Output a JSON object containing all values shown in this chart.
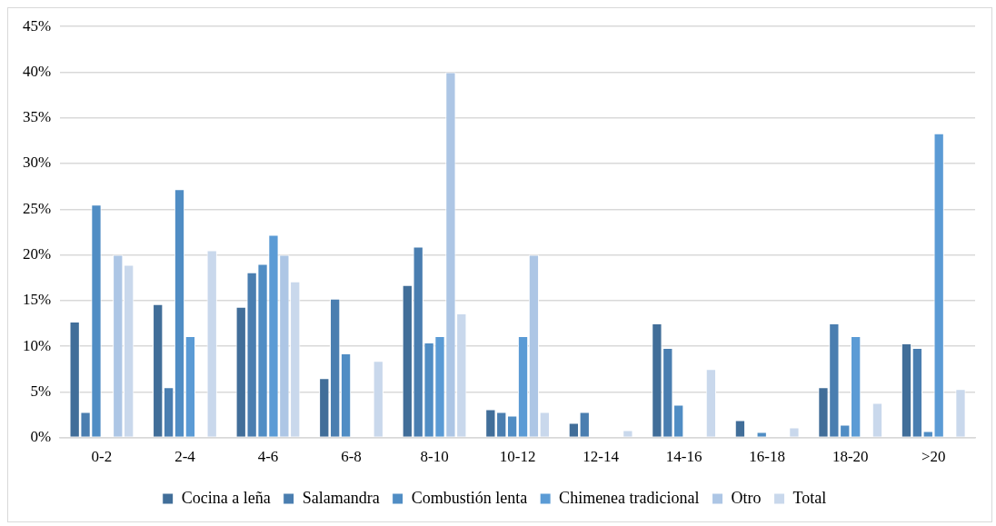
{
  "chart_data": {
    "type": "bar",
    "categories": [
      "0-2",
      "2-4",
      "4-6",
      "6-8",
      "8-10",
      "10-12",
      "12-14",
      "14-16",
      "16-18",
      "18-20",
      ">20"
    ],
    "series": [
      {
        "name": "Cocina a leña",
        "color": "#416e99",
        "values": [
          12.7,
          14.6,
          14.3,
          6.5,
          16.7,
          3.1,
          1.6,
          12.5,
          1.9,
          5.5,
          10.3
        ]
      },
      {
        "name": "Salamandra",
        "color": "#4a7eb0",
        "values": [
          2.8,
          5.5,
          18.1,
          15.2,
          20.9,
          2.8,
          2.8,
          9.8,
          0,
          12.5,
          9.8
        ]
      },
      {
        "name": "Combustión lenta",
        "color": "#508dc4",
        "values": [
          25.5,
          27.2,
          19.0,
          9.2,
          10.4,
          2.4,
          0,
          3.6,
          0.6,
          1.4,
          0.7
        ]
      },
      {
        "name": "Chimenea tradicional",
        "color": "#5b9bd5",
        "values": [
          0,
          11.1,
          22.2,
          0,
          11.1,
          11.1,
          0,
          0,
          0,
          11.1,
          33.3
        ]
      },
      {
        "name": "Otro",
        "color": "#adc6e5",
        "values": [
          20.0,
          0,
          20.0,
          0,
          40.0,
          20.0,
          0,
          0,
          0,
          0,
          0
        ]
      },
      {
        "name": "Total",
        "color": "#c9d8ec",
        "values": [
          18.9,
          20.5,
          17.1,
          8.4,
          13.6,
          2.8,
          0.8,
          7.5,
          1.1,
          3.8,
          5.3
        ]
      }
    ],
    "ylim": [
      0,
      45
    ],
    "yticks": [
      {
        "value": 0,
        "label": "0%"
      },
      {
        "value": 5,
        "label": "5%"
      },
      {
        "value": 10,
        "label": "10%"
      },
      {
        "value": 15,
        "label": "15%"
      },
      {
        "value": 20,
        "label": "20%"
      },
      {
        "value": 25,
        "label": "25%"
      },
      {
        "value": 30,
        "label": "30%"
      },
      {
        "value": 35,
        "label": "35%"
      },
      {
        "value": 40,
        "label": "40%"
      },
      {
        "value": 45,
        "label": "45%"
      }
    ],
    "grid": "y",
    "legend": "bottom"
  }
}
